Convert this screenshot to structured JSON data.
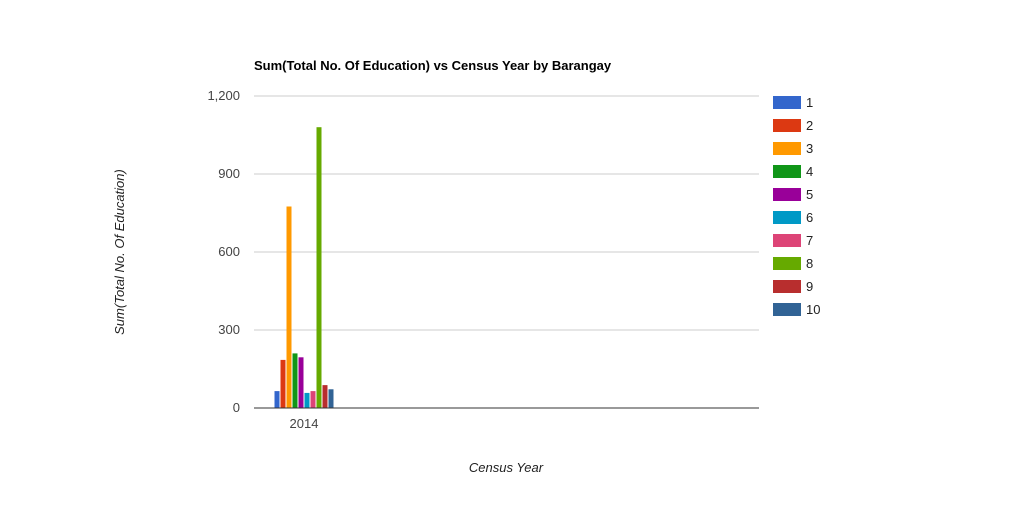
{
  "chart_data": {
    "type": "bar",
    "title": "Sum(Total No. Of Education) vs Census Year by Barangay",
    "xlabel": "Census Year",
    "ylabel": "Sum(Total No. Of Education)",
    "categories": [
      "2014"
    ],
    "ylim": [
      0,
      1200
    ],
    "yticks": [
      0,
      300,
      600,
      900,
      1200
    ],
    "ytick_labels": [
      "0",
      "300",
      "600",
      "900",
      "1,200"
    ],
    "grid": true,
    "legend_position": "right",
    "series": [
      {
        "name": "1",
        "values": [
          65
        ],
        "color": "#3366cc"
      },
      {
        "name": "2",
        "values": [
          185
        ],
        "color": "#dc3912"
      },
      {
        "name": "3",
        "values": [
          775
        ],
        "color": "#ff9900"
      },
      {
        "name": "4",
        "values": [
          210
        ],
        "color": "#109618"
      },
      {
        "name": "5",
        "values": [
          195
        ],
        "color": "#990099"
      },
      {
        "name": "6",
        "values": [
          58
        ],
        "color": "#0099c6"
      },
      {
        "name": "7",
        "values": [
          65
        ],
        "color": "#dd4477"
      },
      {
        "name": "8",
        "values": [
          1080
        ],
        "color": "#66aa00"
      },
      {
        "name": "9",
        "values": [
          88
        ],
        "color": "#b82e2e"
      },
      {
        "name": "10",
        "values": [
          72
        ],
        "color": "#316395"
      }
    ]
  }
}
